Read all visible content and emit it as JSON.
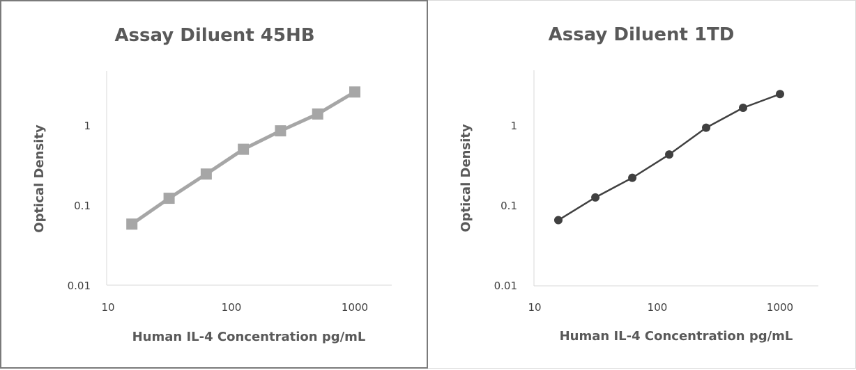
{
  "chart_data": [
    {
      "type": "line",
      "title": "Assay Diluent 45HB",
      "xlabel": "Human IL-4 Concentration pg/mL",
      "ylabel": "Optical Density",
      "xscale": "log",
      "yscale": "log",
      "xlim": [
        10,
        2000
      ],
      "ylim": [
        0.01,
        10
      ],
      "x_ticks": [
        "10",
        "100",
        "1000"
      ],
      "y_ticks": [
        "0.01",
        "0.1",
        "1"
      ],
      "marker": "square",
      "color": "#a6a6a6",
      "grid": false,
      "series": [
        {
          "x": [
            15.6,
            31.25,
            62.5,
            125,
            250,
            500,
            1000
          ],
          "values": [
            0.058,
            0.122,
            0.245,
            0.5,
            0.85,
            1.38,
            2.6
          ]
        }
      ]
    },
    {
      "type": "line",
      "title": "Assay Diluent 1TD",
      "xlabel": "Human IL-4 Concentration pg/mL",
      "ylabel": "Optical Density",
      "xscale": "log",
      "yscale": "log",
      "xlim": [
        10,
        2000
      ],
      "ylim": [
        0.01,
        10
      ],
      "x_ticks": [
        "10",
        "100",
        "1000"
      ],
      "y_ticks": [
        "0.01",
        "0.1",
        "1"
      ],
      "marker": "circle",
      "color": "#404040",
      "grid": false,
      "series": [
        {
          "x": [
            15.6,
            31.25,
            62.5,
            125,
            250,
            500,
            1000
          ],
          "values": [
            0.065,
            0.125,
            0.22,
            0.43,
            0.93,
            1.65,
            2.45
          ]
        }
      ]
    }
  ]
}
